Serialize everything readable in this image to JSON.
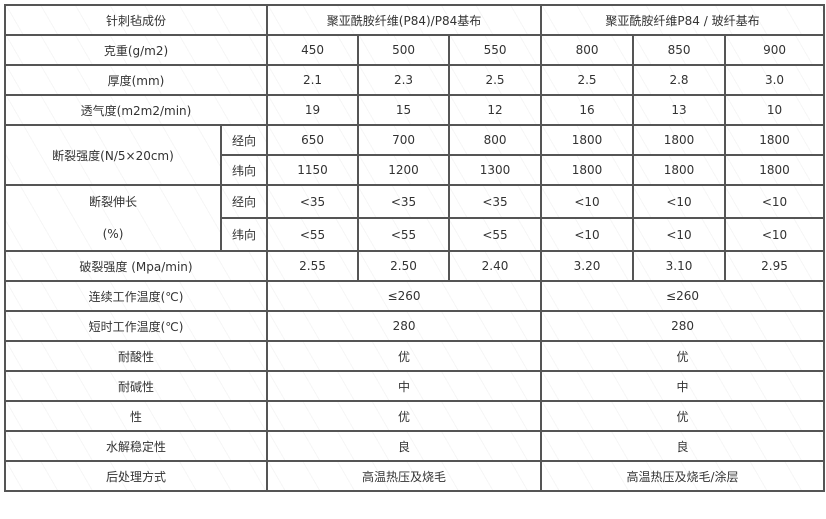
{
  "header": {
    "label": "针刺毡成份",
    "group1": "聚亚酰胺纤维(P84)/P84基布",
    "group2": "聚亚酰胺纤维P84 / 玻纤基布"
  },
  "rows": [
    {
      "label": "克重(g/m2)",
      "values": [
        "450",
        "500",
        "550",
        "800",
        "850",
        "900"
      ]
    },
    {
      "label": "厚度(mm)",
      "values": [
        "2.1",
        "2.3",
        "2.5",
        "2.5",
        "2.8",
        "3.0"
      ]
    },
    {
      "label": "透气度(m2m2/min)",
      "values": [
        "19",
        "15",
        "12",
        "16",
        "13",
        "10"
      ]
    }
  ],
  "tensile": {
    "label": "断裂强度(N/5×20cm)",
    "sub": [
      {
        "dir": "经向",
        "values": [
          "650",
          "700",
          "800",
          "1800",
          "1800",
          "1800"
        ]
      },
      {
        "dir": "纬向",
        "values": [
          "1150",
          "1200",
          "1300",
          "1800",
          "1800",
          "1800"
        ]
      }
    ]
  },
  "elongation": {
    "label_line1": "断裂伸长",
    "label_line2": "(%)",
    "sub": [
      {
        "dir": "经向",
        "values": [
          "<35",
          "<35",
          "<35",
          "<10",
          "<10",
          "<10"
        ]
      },
      {
        "dir": "纬向",
        "values": [
          "<55",
          "<55",
          "<55",
          "<10",
          "<10",
          "<10"
        ]
      }
    ]
  },
  "burst": {
    "label": "破裂强度 (Mpa/min)",
    "values": [
      "2.55",
      "2.50",
      "2.40",
      "3.20",
      "3.10",
      "2.95"
    ]
  },
  "merged_rows": [
    {
      "label": "连续工作温度(℃)",
      "g1": "≤260",
      "g2": "≤260"
    },
    {
      "label": "短时工作温度(℃)",
      "g1": "280",
      "g2": "280"
    },
    {
      "label": "耐酸性",
      "g1": "优",
      "g2": "优"
    },
    {
      "label": "耐碱性",
      "g1": "中",
      "g2": "中"
    },
    {
      "label": "性",
      "g1": "优",
      "g2": "优"
    },
    {
      "label": "水解稳定性",
      "g1": "良",
      "g2": "良"
    },
    {
      "label": "后处理方式",
      "g1": "高温热压及烧毛",
      "g2": "高温热压及烧毛/涂层"
    }
  ]
}
